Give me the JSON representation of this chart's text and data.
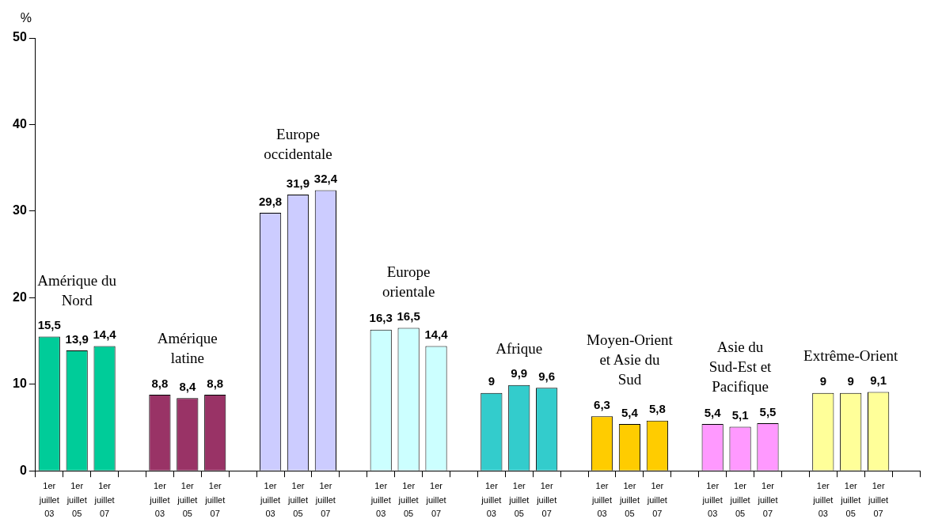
{
  "chart_data": {
    "type": "bar",
    "ylabel": "%",
    "categories": [
      "1er juillet 03",
      "1er juillet 05",
      "1er juillet 07",
      null,
      "1er juillet 03",
      "1er juillet 05",
      "1er juillet 07",
      null,
      "1er juillet 03",
      "1er juillet 05",
      "1er juillet 07",
      null,
      "1er juillet 03",
      "1er juillet 05",
      "1er juillet 07",
      null,
      "1er juillet 03",
      "1er juillet 05",
      "1er juillet 07",
      null,
      "1er juillet 03",
      "1er juillet 05",
      "1er juillet 07",
      null,
      "1er juillet 03",
      "1er juillet 05",
      "1er juillet 07",
      null,
      "1er juillet 03",
      "1er juillet 05",
      "1er juillet 07",
      null
    ],
    "values": [
      15.5,
      13.9,
      14.4,
      null,
      8.8,
      8.4,
      8.8,
      null,
      29.8,
      31.9,
      32.4,
      null,
      16.3,
      16.5,
      14.4,
      null,
      9,
      9.9,
      9.6,
      null,
      6.3,
      5.4,
      5.8,
      null,
      5.4,
      5.1,
      5.5,
      null,
      9,
      9,
      9.1,
      null
    ],
    "colors": [
      "#00cc99",
      "#00cc99",
      "#00cc99",
      null,
      "#993366",
      "#993366",
      "#993366",
      null,
      "#ccccff",
      "#ccccff",
      "#ccccff",
      null,
      "#ccffff",
      "#ccffff",
      "#ccffff",
      null,
      "#33cccc",
      "#33cccc",
      "#33cccc",
      null,
      "#ffcc00",
      "#ffcc00",
      "#ffcc00",
      null,
      "#ff99ff",
      "#ff99ff",
      "#ff99ff",
      null,
      "#ffff99",
      "#ffff99",
      "#ffff99",
      null
    ],
    "annotations": [
      "Amérique du Nord",
      "Amérique latine",
      "Europe occidentale",
      "Europe orientale",
      "Afrique",
      "Moyen-Orient et Asie du Sud",
      "Asie du Sud-Est et Pacifique",
      "Extrême-Orient"
    ],
    "ylim": [
      0,
      50
    ],
    "yticks": [
      0,
      10,
      20,
      30,
      40,
      50
    ],
    "value_labels": [
      "15,5",
      "13,9",
      "14,4",
      null,
      "8,8",
      "8,4",
      "8,8",
      null,
      "29,8",
      "31,9",
      "32,4",
      null,
      "16,3",
      "16,5",
      "14,4",
      null,
      "9",
      "9,9",
      "9,6",
      null,
      "6,3",
      "5,4",
      "5,8",
      null,
      "5,4",
      "5,1",
      "5,5",
      null,
      "9",
      "9",
      "9,1",
      null
    ],
    "grid": false,
    "legend": false
  }
}
